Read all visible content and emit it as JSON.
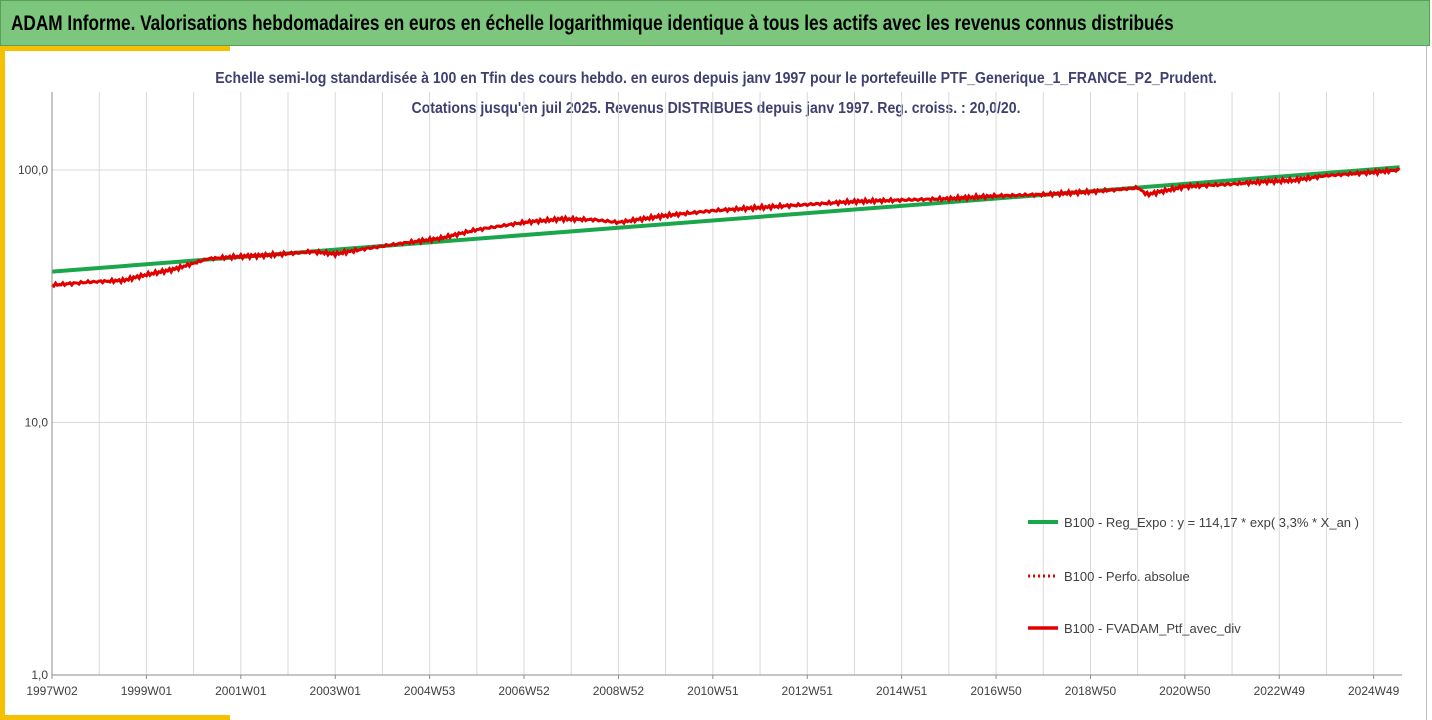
{
  "header": {
    "title": "ADAM Informe. Valorisations hebdomadaires en euros en échelle logarithmique identique à tous les actifs avec les revenus connus distribués"
  },
  "colors": {
    "header_bg": "#7dc67d",
    "accent": "#f5c000",
    "regression": "#1aa64a",
    "performance": "#e00000",
    "gridline": "#d9d9d9"
  },
  "chart_data": {
    "type": "line",
    "title": "Echelle semi-log standardisée à 100 en Tfin des cours hebdo. en euros depuis janv 1997 pour le portefeuille PTF_Generique_1_FRANCE_P2_Prudent.",
    "subtitle": "Cotations jusqu'en juil 2025. Revenus DISTRIBUES depuis janv 1997. Reg. croiss. : 20,0/20.",
    "y_scale": "log",
    "ylim": [
      1,
      200
    ],
    "y_ticks": [
      "1,0",
      "10,0",
      "100,0"
    ],
    "y_tick_values": [
      1,
      10,
      100
    ],
    "x_ticks": [
      "1997W02",
      "1999W01",
      "2001W01",
      "2003W01",
      "2004W53",
      "2006W52",
      "2008W52",
      "2010W51",
      "2012W51",
      "2014W51",
      "2016W50",
      "2018W50",
      "2020W50",
      "2022W49",
      "2024W49"
    ],
    "x_tick_years": [
      1997,
      1999,
      2001,
      2003,
      2005,
      2007,
      2009,
      2011,
      2013,
      2015,
      2017,
      2019,
      2021,
      2023,
      2025
    ],
    "xlim": [
      1997,
      2025.6
    ],
    "grid": true,
    "legend_position": "lower-right",
    "series": [
      {
        "name": "B100 - Reg_Expo : y = 114,17 * exp( 3,3% *  X_an )",
        "style": "solid-thick",
        "color": "#1aa64a",
        "x": [
          1997,
          2025.55
        ],
        "y": [
          39.6,
          102.5
        ]
      },
      {
        "name": "B100 - Perfo. absolue",
        "style": "dotted",
        "color": "#e00000",
        "x": [
          1997,
          1997.8,
          1998.5,
          1999,
          1999.6,
          2000.3,
          2001,
          2001.6,
          2002.5,
          2003,
          2003.7,
          2004.5,
          2005.2,
          2006,
          2007,
          2007.8,
          2008.5,
          2009,
          2010,
          2011,
          2012,
          2013,
          2014,
          2015,
          2016,
          2017,
          2018,
          2019,
          2020,
          2020.2,
          2021,
          2022,
          2022.7,
          2023.3,
          2024,
          2025,
          2025.55
        ],
        "y": [
          35,
          36,
          36.5,
          38.5,
          40.5,
          44.5,
          45.5,
          46,
          47.5,
          46.5,
          49,
          51.5,
          53.5,
          58,
          62,
          64,
          63.5,
          62,
          66,
          69,
          71,
          73,
          75,
          76,
          77,
          79,
          80,
          82,
          85,
          80,
          86,
          88,
          90,
          91,
          95,
          98,
          100
        ]
      },
      {
        "name": "B100 - FVADAM_Ptf_avec_div",
        "style": "solid",
        "color": "#e00000",
        "x": [
          1997,
          1997.8,
          1998.5,
          1999,
          1999.6,
          2000.3,
          2001,
          2001.6,
          2002.5,
          2003,
          2003.7,
          2004.5,
          2005.2,
          2006,
          2007,
          2007.8,
          2008.5,
          2009,
          2010,
          2011,
          2012,
          2013,
          2014,
          2015,
          2016,
          2017,
          2018,
          2019,
          2020,
          2020.2,
          2021,
          2022,
          2022.7,
          2023.3,
          2024,
          2025,
          2025.55
        ],
        "y": [
          35,
          36,
          36.5,
          38.5,
          40.5,
          44.5,
          45.5,
          46,
          47.5,
          46.5,
          49,
          51.5,
          53.5,
          58,
          62,
          64,
          63.5,
          62,
          66,
          69,
          71,
          73,
          75,
          76,
          77,
          79,
          80,
          82,
          85,
          80,
          86,
          88,
          90,
          91,
          95,
          98,
          100
        ]
      }
    ]
  }
}
